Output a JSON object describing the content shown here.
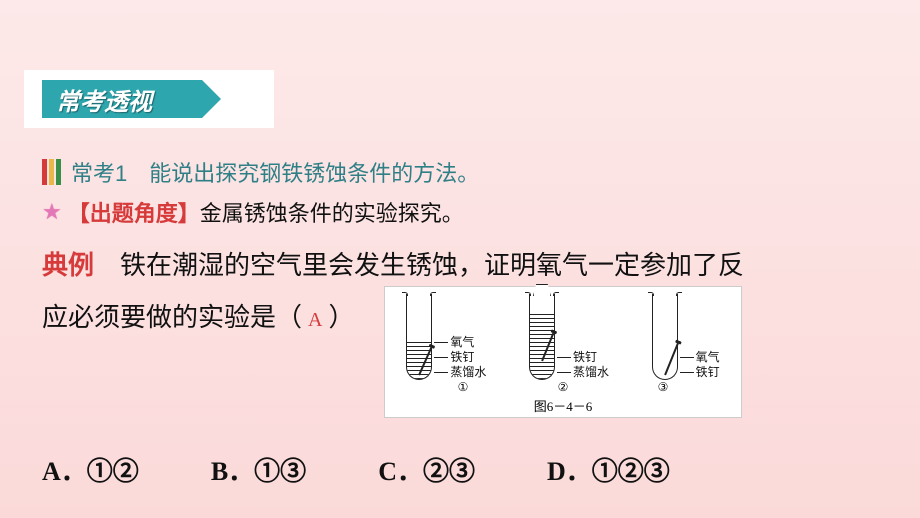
{
  "colors": {
    "bg_top": "#fde9e9",
    "bg_bottom": "#fbd9d9",
    "teal": "#2da6ae",
    "teal_text": "#2f7f86",
    "red": "#d63a3a",
    "star": "#e477b6",
    "black": "#111111",
    "white": "#ffffff",
    "bar_red": "#d53a3a",
    "bar_yellow": "#e9b84a",
    "bar_green": "#3a8f46"
  },
  "fonts": {
    "body_pt": 26,
    "topic_pt": 22,
    "badge_pt": 24,
    "figure_label_pt": 12,
    "caption_pt": 13,
    "answer_pt": 20
  },
  "header": {
    "title": "常考透视"
  },
  "topic": {
    "label": "常考1",
    "text": "能说出探究钢铁锈蚀条件的方法。"
  },
  "angle": {
    "label": "【出题角度】",
    "text": "金属锈蚀条件的实验探究。"
  },
  "question": {
    "prefix": "典例",
    "body_line1": "　铁在潮湿的空气里会发生锈蚀，证明氧气一定参加了反",
    "body_line2_a": "应必须要做的实验是（",
    "body_line2_b": "）",
    "answer": "A"
  },
  "figure": {
    "tubes": [
      {
        "id": "①",
        "labels": [
          "氧气",
          "铁钉",
          "蒸馏水"
        ],
        "water": "partial",
        "stopper": false
      },
      {
        "id": "②",
        "labels": [
          "铁钉",
          "蒸馏水"
        ],
        "water": "full",
        "stopper": true
      },
      {
        "id": "③",
        "labels": [
          "氧气",
          "铁钉"
        ],
        "water": "none",
        "stopper": false
      }
    ],
    "caption": "图6－4－6"
  },
  "options": [
    {
      "key": "A",
      "text": "①②"
    },
    {
      "key": "B",
      "text": "①③"
    },
    {
      "key": "C",
      "text": "②③"
    },
    {
      "key": "D",
      "text": "①②③"
    }
  ]
}
